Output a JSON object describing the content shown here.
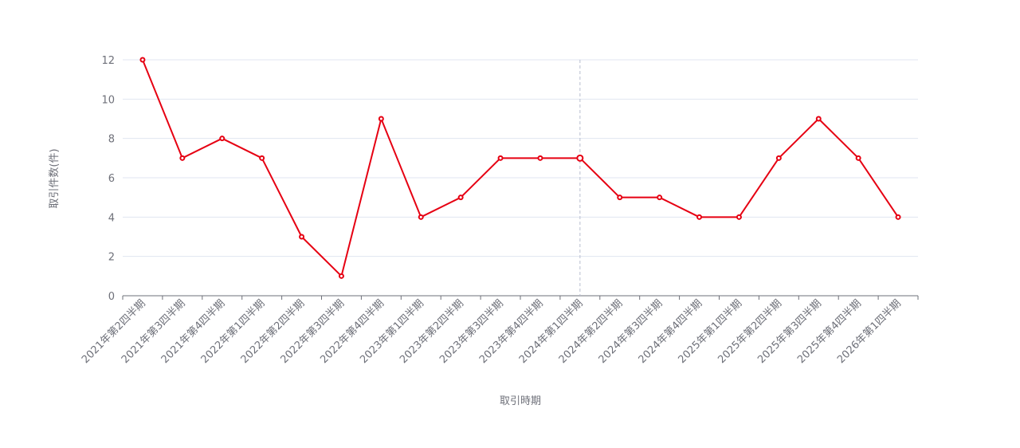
{
  "chart_data": {
    "type": "line",
    "xlabel": "取引時期",
    "ylabel": "取引件数(件)",
    "ylim": [
      0,
      12
    ],
    "yticks": [
      0,
      2,
      4,
      6,
      8,
      10,
      12
    ],
    "grid": true,
    "categories": [
      "2021年第2四半期",
      "2021年第3四半期",
      "2021年第4四半期",
      "2022年第1四半期",
      "2022年第2四半期",
      "2022年第3四半期",
      "2022年第4四半期",
      "2023年第1四半期",
      "2023年第2四半期",
      "2023年第3四半期",
      "2023年第4四半期",
      "2024年第1四半期",
      "2024年第2四半期",
      "2024年第3四半期",
      "2024年第4四半期",
      "2025年第1四半期",
      "2025年第2四半期",
      "2025年第3四半期",
      "2025年第4四半期",
      "2026年第1四半期"
    ],
    "series": [
      {
        "values": [
          12,
          7,
          8,
          7,
          3,
          1,
          9,
          4,
          5,
          7,
          7,
          7,
          5,
          5,
          4,
          4,
          7,
          9,
          7,
          4
        ],
        "color": "#e60012"
      }
    ],
    "highlighted_category": "2024年第1四半期"
  }
}
